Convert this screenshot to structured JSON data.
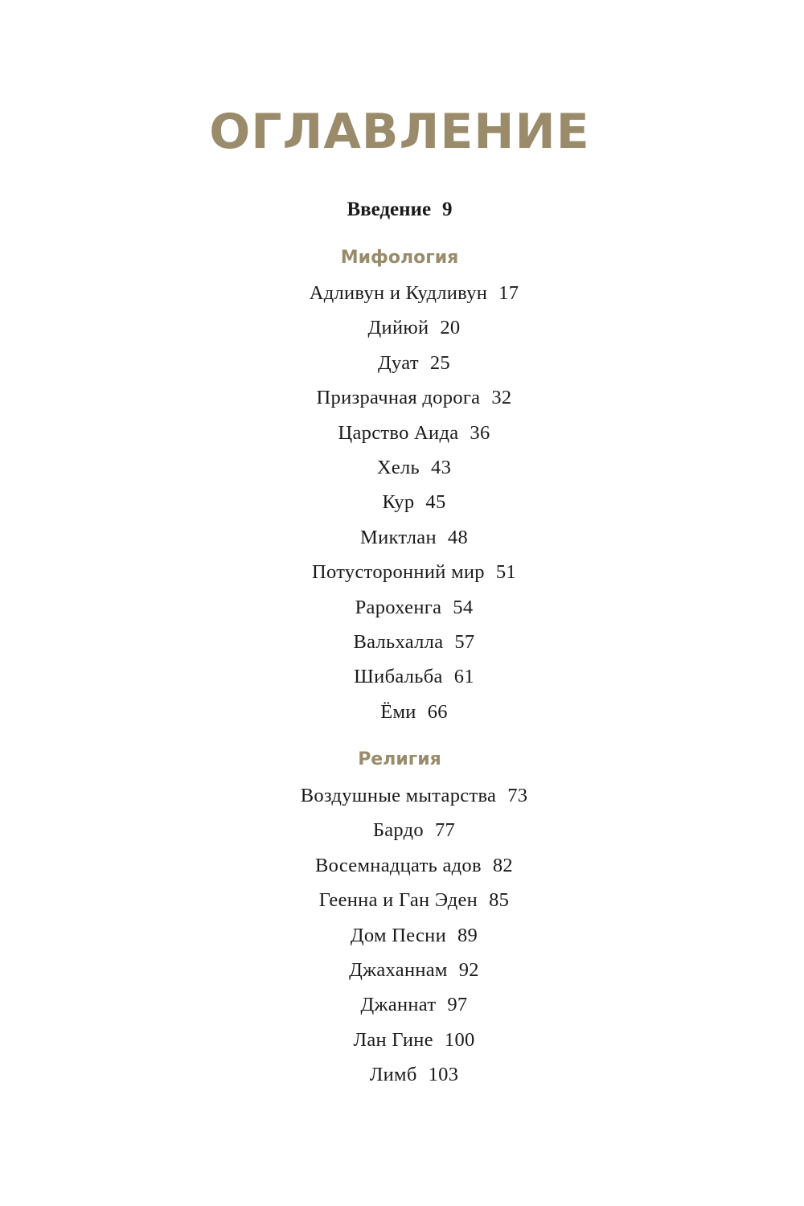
{
  "title": "ОГЛАВЛЕНИЕ",
  "intro": {
    "label": "Введение",
    "page": "9"
  },
  "accent_color": "#9a8b6b",
  "sections": [
    {
      "heading": "Мифология",
      "entries": [
        {
          "label": "Адливун и Кудливун",
          "page": "17"
        },
        {
          "label": "Дийюй",
          "page": "20"
        },
        {
          "label": "Дуат",
          "page": "25"
        },
        {
          "label": "Призрачная дорога",
          "page": "32"
        },
        {
          "label": "Царство Аида",
          "page": "36"
        },
        {
          "label": "Хель",
          "page": "43"
        },
        {
          "label": "Кур",
          "page": "45"
        },
        {
          "label": "Миктлан",
          "page": "48"
        },
        {
          "label": "Потусторонний мир",
          "page": "51"
        },
        {
          "label": "Рарохенга",
          "page": "54"
        },
        {
          "label": "Вальхалла",
          "page": "57"
        },
        {
          "label": "Шибальба",
          "page": "61"
        },
        {
          "label": "Ёми",
          "page": "66"
        }
      ]
    },
    {
      "heading": "Религия",
      "entries": [
        {
          "label": "Воздушные мытарства",
          "page": "73"
        },
        {
          "label": "Бардо",
          "page": "77"
        },
        {
          "label": "Восемнадцать адов",
          "page": "82"
        },
        {
          "label": "Геенна и Ган Эден",
          "page": "85"
        },
        {
          "label": "Дом Песни",
          "page": "89"
        },
        {
          "label": "Джаханнам",
          "page": "92"
        },
        {
          "label": "Джаннат",
          "page": "97"
        },
        {
          "label": "Лан Гине",
          "page": "100"
        },
        {
          "label": "Лимб",
          "page": "103"
        }
      ]
    }
  ]
}
